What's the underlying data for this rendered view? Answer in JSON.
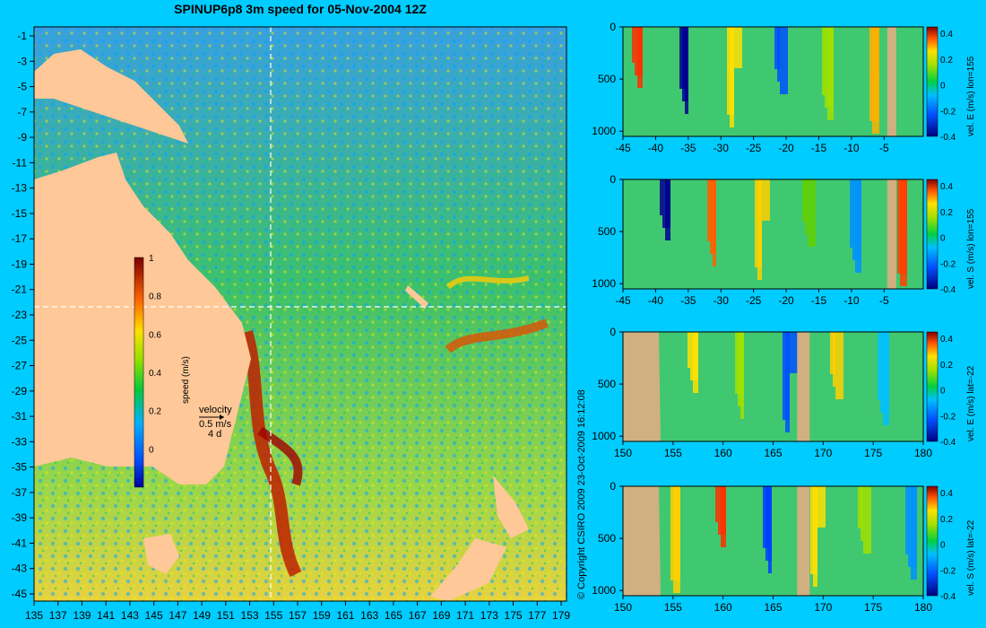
{
  "title": "SPINUP6p8 3m speed for 05-Nov-2004 12Z",
  "copyright": "© Copyright CSIRO 2009   23-Oct-2009 16:12:08",
  "map": {
    "lat_ticks": [
      "-1",
      "-3",
      "-5",
      "-7",
      "-9",
      "-11",
      "-13",
      "-15",
      "-17",
      "-19",
      "-21",
      "-23",
      "-25",
      "-27",
      "-29",
      "-31",
      "-33",
      "-35",
      "-37",
      "-39",
      "-41",
      "-43",
      "-45"
    ],
    "lon_ticks": [
      "135",
      "137",
      "139",
      "141",
      "143",
      "145",
      "147",
      "149",
      "151",
      "153",
      "155",
      "157",
      "159",
      "161",
      "163",
      "165",
      "167",
      "169",
      "171",
      "173",
      "175",
      "177",
      "179"
    ],
    "colorbar_label": "speed (m/s)",
    "colorbar_ticks": [
      "1",
      "0.8",
      "0.6",
      "0.4",
      "0.2",
      "0"
    ],
    "velocity_key": {
      "title": "velocity",
      "speed": "0.5 m/s",
      "duration": "4 d"
    },
    "section_line_lon": 155,
    "section_line_lat": -22
  },
  "chart_data": [
    {
      "type": "heatmap",
      "title": "",
      "xlabel": "",
      "ylabel": "",
      "colorbar_label": "vel. E (m/s) lon=155",
      "x_ticks": [
        "-45",
        "-40",
        "-35",
        "-30",
        "-25",
        "-20",
        "-15",
        "-10",
        "-5"
      ],
      "y_ticks": [
        "0",
        "500",
        "1000"
      ],
      "colorbar_ticks": [
        "0.4",
        "0.2",
        "0",
        "-0.2",
        "-0.4"
      ],
      "xlim": [
        -45,
        1
      ],
      "ylim": [
        1050,
        0
      ],
      "clim": [
        -0.4,
        0.45
      ]
    },
    {
      "type": "heatmap",
      "title": "",
      "xlabel": "",
      "ylabel": "",
      "colorbar_label": "vel. S (m/s) lon=155",
      "x_ticks": [
        "-45",
        "-40",
        "-35",
        "-30",
        "-25",
        "-20",
        "-15",
        "-10",
        "-5"
      ],
      "y_ticks": [
        "0",
        "500",
        "1000"
      ],
      "colorbar_ticks": [
        "0.4",
        "0.2",
        "0",
        "-0.2",
        "-0.4"
      ],
      "xlim": [
        -45,
        1
      ],
      "ylim": [
        1050,
        0
      ],
      "clim": [
        -0.4,
        0.45
      ]
    },
    {
      "type": "heatmap",
      "title": "",
      "xlabel": "",
      "ylabel": "",
      "colorbar_label": "vel. E (m/s) lat=-22",
      "x_ticks": [
        "150",
        "155",
        "160",
        "165",
        "170",
        "175",
        "180"
      ],
      "y_ticks": [
        "0",
        "500",
        "1000"
      ],
      "colorbar_ticks": [
        "0.4",
        "0.2",
        "0",
        "-0.2",
        "-0.4"
      ],
      "xlim": [
        150,
        180
      ],
      "ylim": [
        1050,
        0
      ],
      "clim": [
        -0.4,
        0.45
      ]
    },
    {
      "type": "heatmap",
      "title": "",
      "xlabel": "",
      "ylabel": "",
      "colorbar_label": "vel. S (m/s) lat=-22",
      "x_ticks": [
        "150",
        "155",
        "160",
        "165",
        "170",
        "175",
        "180"
      ],
      "y_ticks": [
        "0",
        "500",
        "1000"
      ],
      "colorbar_ticks": [
        "0.4",
        "0.2",
        "0",
        "-0.2",
        "-0.4"
      ],
      "xlim": [
        150,
        180
      ],
      "ylim": [
        1050,
        0
      ],
      "clim": [
        -0.4,
        0.45
      ]
    }
  ]
}
